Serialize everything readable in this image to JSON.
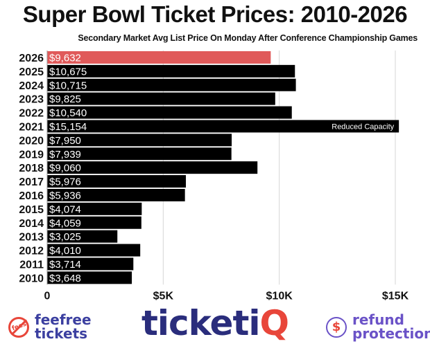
{
  "header": {
    "title": "Super Bowl Ticket Prices: 2010-2026",
    "subtitle": "Secondary Market Avg List Price On Monday After Conference Championship Games"
  },
  "chart_data": {
    "type": "bar",
    "orientation": "horizontal",
    "title": "Super Bowl Ticket Prices: 2010-2026",
    "subtitle": "Secondary Market Avg List Price On Monday After Conference Championship Games",
    "xlabel": "",
    "ylabel": "",
    "xlim": [
      0,
      16000
    ],
    "x_ticks": [
      {
        "value": 0,
        "label": "0"
      },
      {
        "value": 5000,
        "label": "$5K"
      },
      {
        "value": 10000,
        "label": "$10K"
      },
      {
        "value": 15000,
        "label": "$15K"
      }
    ],
    "grid": true,
    "categories": [
      "2026",
      "2025",
      "2024",
      "2023",
      "2022",
      "2021",
      "2020",
      "2019",
      "2018",
      "2017",
      "2016",
      "2015",
      "2014",
      "2013",
      "2012",
      "2011",
      "2010"
    ],
    "values": [
      9632,
      10675,
      10715,
      9825,
      10540,
      15154,
      7950,
      7939,
      9060,
      5976,
      5936,
      4074,
      4059,
      3025,
      4010,
      3714,
      3648
    ],
    "value_labels": [
      "$9,632",
      "$10,675",
      "$10,715",
      "$9,825",
      "$10,540",
      "$15,154",
      "$7,950",
      "$7,939",
      "$9,060",
      "$5,976",
      "$5,936",
      "$4,074",
      "$4,059",
      "$3,025",
      "$4,010",
      "$3,714",
      "$3,648"
    ],
    "bar_color": "#000000",
    "highlight_color": "#e05a5a",
    "highlight_index": 0,
    "annotations": [
      {
        "category": "2021",
        "text": "Reduced Capacity"
      }
    ]
  },
  "footer": {
    "left_logo_badge": "fees",
    "left_logo_line1": "feefree",
    "left_logo_line2": "tickets",
    "center_logo_main": "ticketi",
    "center_logo_accent": "Q",
    "right_logo_badge": "$",
    "right_logo_line1": "refund",
    "right_logo_line2": "protection",
    "colors": {
      "brand_navy": "#2a2d7c",
      "brand_red": "#e8463a",
      "brand_purple": "#6a52c7"
    }
  }
}
